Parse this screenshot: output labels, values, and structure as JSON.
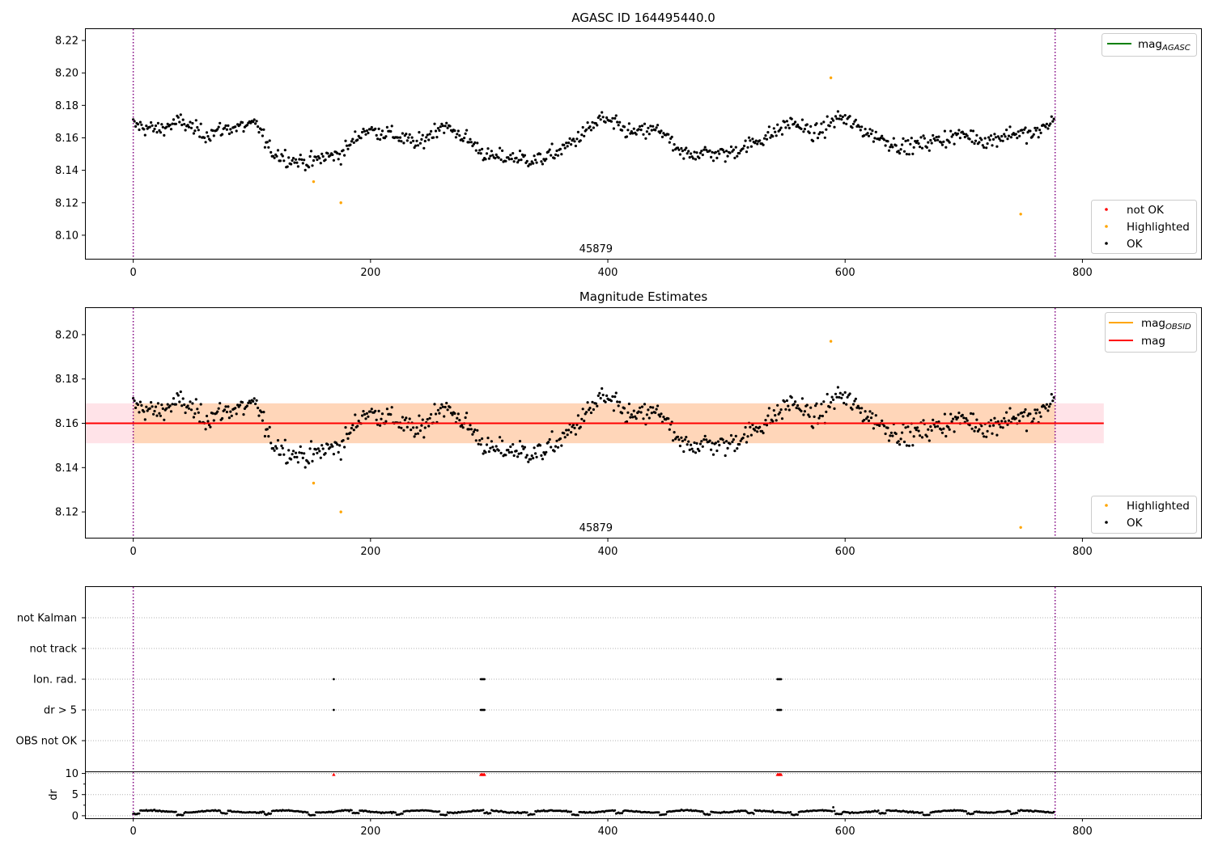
{
  "chart_data": [
    {
      "type": "scatter",
      "title": "AGASC ID 164495440.0",
      "xlabel": "",
      "ylabel": "",
      "xlim": [
        -40,
        900
      ],
      "ylim": [
        8.085,
        8.227
      ],
      "x_ticks": [
        0,
        200,
        400,
        600,
        800
      ],
      "y_ticks": [
        8.1,
        8.12,
        8.14,
        8.16,
        8.18,
        8.2,
        8.22
      ],
      "obsid_label": {
        "text": "45879",
        "x": 390
      },
      "observation_bounds": [
        0,
        777
      ],
      "legend_lines": [
        {
          "label": "mag",
          "sub": "AGASC",
          "color": "#008000"
        }
      ],
      "legend_points": [
        {
          "label": "not OK",
          "color": "#ff0000"
        },
        {
          "label": "Highlighted",
          "color": "#ffa500"
        },
        {
          "label": "OK",
          "color": "#000000"
        }
      ],
      "highlighted": {
        "x": [
          152,
          175,
          588,
          748
        ],
        "y": [
          8.133,
          8.12,
          8.197,
          8.113
        ]
      },
      "ok_series_summary": {
        "n_points": 777,
        "mean": 8.16,
        "min": 8.136,
        "max": 8.183
      }
    },
    {
      "type": "scatter",
      "title": "Magnitude Estimates",
      "xlabel": "",
      "ylabel": "",
      "xlim": [
        -40,
        900
      ],
      "ylim": [
        8.108,
        8.212
      ],
      "x_ticks": [
        0,
        200,
        400,
        600,
        800
      ],
      "y_ticks": [
        8.12,
        8.14,
        8.16,
        8.18,
        8.2
      ],
      "obsid_label": {
        "text": "45879",
        "x": 390
      },
      "observation_bounds": [
        0,
        777
      ],
      "mag_line": 8.16,
      "mag_band": [
        8.151,
        8.169
      ],
      "obsid_band": [
        8.151,
        8.169
      ],
      "legend_lines": [
        {
          "label": "mag",
          "sub": "OBSID",
          "color": "#ffa500"
        },
        {
          "label": "mag",
          "sub": "",
          "color": "#ff0000"
        }
      ],
      "legend_points": [
        {
          "label": "Highlighted",
          "color": "#ffa500"
        },
        {
          "label": "OK",
          "color": "#000000"
        }
      ],
      "highlighted": {
        "x": [
          152,
          175,
          588,
          748
        ],
        "y": [
          8.133,
          8.12,
          8.197,
          8.113
        ]
      }
    },
    {
      "type": "scatter",
      "title": "",
      "xlim": [
        -40,
        900
      ],
      "categories": [
        "not Kalman",
        "not track",
        "Ion. rad.",
        "dr > 5",
        "OBS not OK"
      ],
      "flags": {
        "Ion. rad.": [
          169,
          293,
          294,
          295,
          296,
          543,
          544,
          545,
          546
        ],
        "dr > 5": [
          169,
          293,
          294,
          295,
          296,
          543,
          544,
          545,
          546
        ]
      }
    },
    {
      "type": "scatter",
      "title": "",
      "xlabel": "",
      "ylabel": "dr",
      "xlim": [
        -40,
        900
      ],
      "ylim": [
        -0.6,
        10.3
      ],
      "x_ticks": [
        0,
        200,
        400,
        600,
        800
      ],
      "y_ticks": [
        0,
        5,
        10
      ],
      "clipped_markers": [
        169,
        293,
        294,
        295,
        296,
        543,
        544,
        545,
        546
      ],
      "series_summary": {
        "n_points": 777,
        "typical": 1.0,
        "min": 0.1,
        "max": 2.0
      }
    }
  ]
}
